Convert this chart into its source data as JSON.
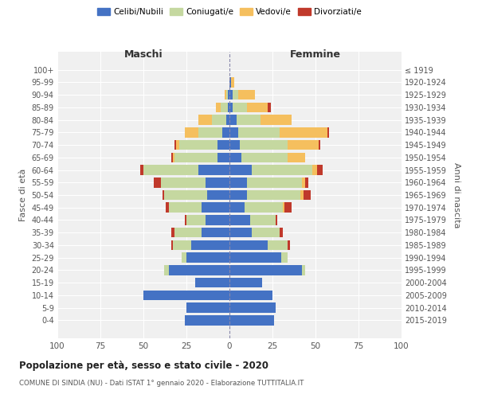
{
  "age_groups": [
    "100+",
    "95-99",
    "90-94",
    "85-89",
    "80-84",
    "75-79",
    "70-74",
    "65-69",
    "60-64",
    "55-59",
    "50-54",
    "45-49",
    "40-44",
    "35-39",
    "30-34",
    "25-29",
    "20-24",
    "15-19",
    "10-14",
    "5-9",
    "0-4"
  ],
  "birth_years": [
    "≤ 1919",
    "1920-1924",
    "1925-1929",
    "1930-1934",
    "1935-1939",
    "1940-1944",
    "1945-1949",
    "1950-1954",
    "1955-1959",
    "1960-1964",
    "1965-1969",
    "1970-1974",
    "1975-1979",
    "1980-1984",
    "1985-1989",
    "1990-1994",
    "1995-1999",
    "2000-2004",
    "2005-2009",
    "2010-2014",
    "2015-2019"
  ],
  "colors": {
    "celibi": "#4472c4",
    "coniugati": "#c5d8a0",
    "vedovi": "#f5bf5e",
    "divorziati": "#c0392b"
  },
  "maschi": {
    "celibi": [
      0,
      0,
      1,
      1,
      2,
      4,
      7,
      7,
      18,
      14,
      13,
      16,
      14,
      16,
      22,
      25,
      35,
      20,
      50,
      25,
      26
    ],
    "coniugati": [
      0,
      0,
      1,
      4,
      8,
      14,
      22,
      25,
      32,
      26,
      25,
      19,
      11,
      16,
      11,
      3,
      3,
      0,
      0,
      0,
      0
    ],
    "vedovi": [
      0,
      0,
      1,
      3,
      8,
      8,
      2,
      1,
      0,
      0,
      0,
      0,
      0,
      0,
      0,
      0,
      0,
      0,
      0,
      0,
      0
    ],
    "divorziati": [
      0,
      0,
      0,
      0,
      0,
      0,
      1,
      1,
      2,
      4,
      1,
      2,
      1,
      2,
      1,
      0,
      0,
      0,
      0,
      0,
      0
    ]
  },
  "femmine": {
    "celibi": [
      0,
      1,
      2,
      2,
      4,
      5,
      6,
      7,
      13,
      10,
      10,
      9,
      12,
      13,
      22,
      30,
      42,
      19,
      25,
      27,
      26
    ],
    "coniugati": [
      0,
      0,
      3,
      8,
      14,
      24,
      28,
      27,
      35,
      32,
      31,
      22,
      15,
      16,
      12,
      4,
      2,
      0,
      0,
      0,
      0
    ],
    "vedovi": [
      0,
      2,
      10,
      12,
      18,
      28,
      18,
      10,
      3,
      2,
      2,
      1,
      0,
      0,
      0,
      0,
      0,
      0,
      0,
      0,
      0
    ],
    "divorziati": [
      0,
      0,
      0,
      2,
      0,
      1,
      1,
      0,
      3,
      2,
      4,
      4,
      1,
      2,
      1,
      0,
      0,
      0,
      0,
      0,
      0
    ]
  },
  "xlim": 100,
  "title": "Popolazione per età, sesso e stato civile - 2020",
  "subtitle": "COMUNE DI SINDIA (NU) - Dati ISTAT 1° gennaio 2020 - Elaborazione TUTTITALIA.IT",
  "ylabel_left": "Fasce di età",
  "ylabel_right": "Anni di nascita",
  "xlabel_maschi": "Maschi",
  "xlabel_femmine": "Femmine",
  "legend_labels": [
    "Celibi/Nubili",
    "Coniugati/e",
    "Vedovi/e",
    "Divorziati/e"
  ],
  "background_color": "#ffffff",
  "grid_color": "#cccccc"
}
